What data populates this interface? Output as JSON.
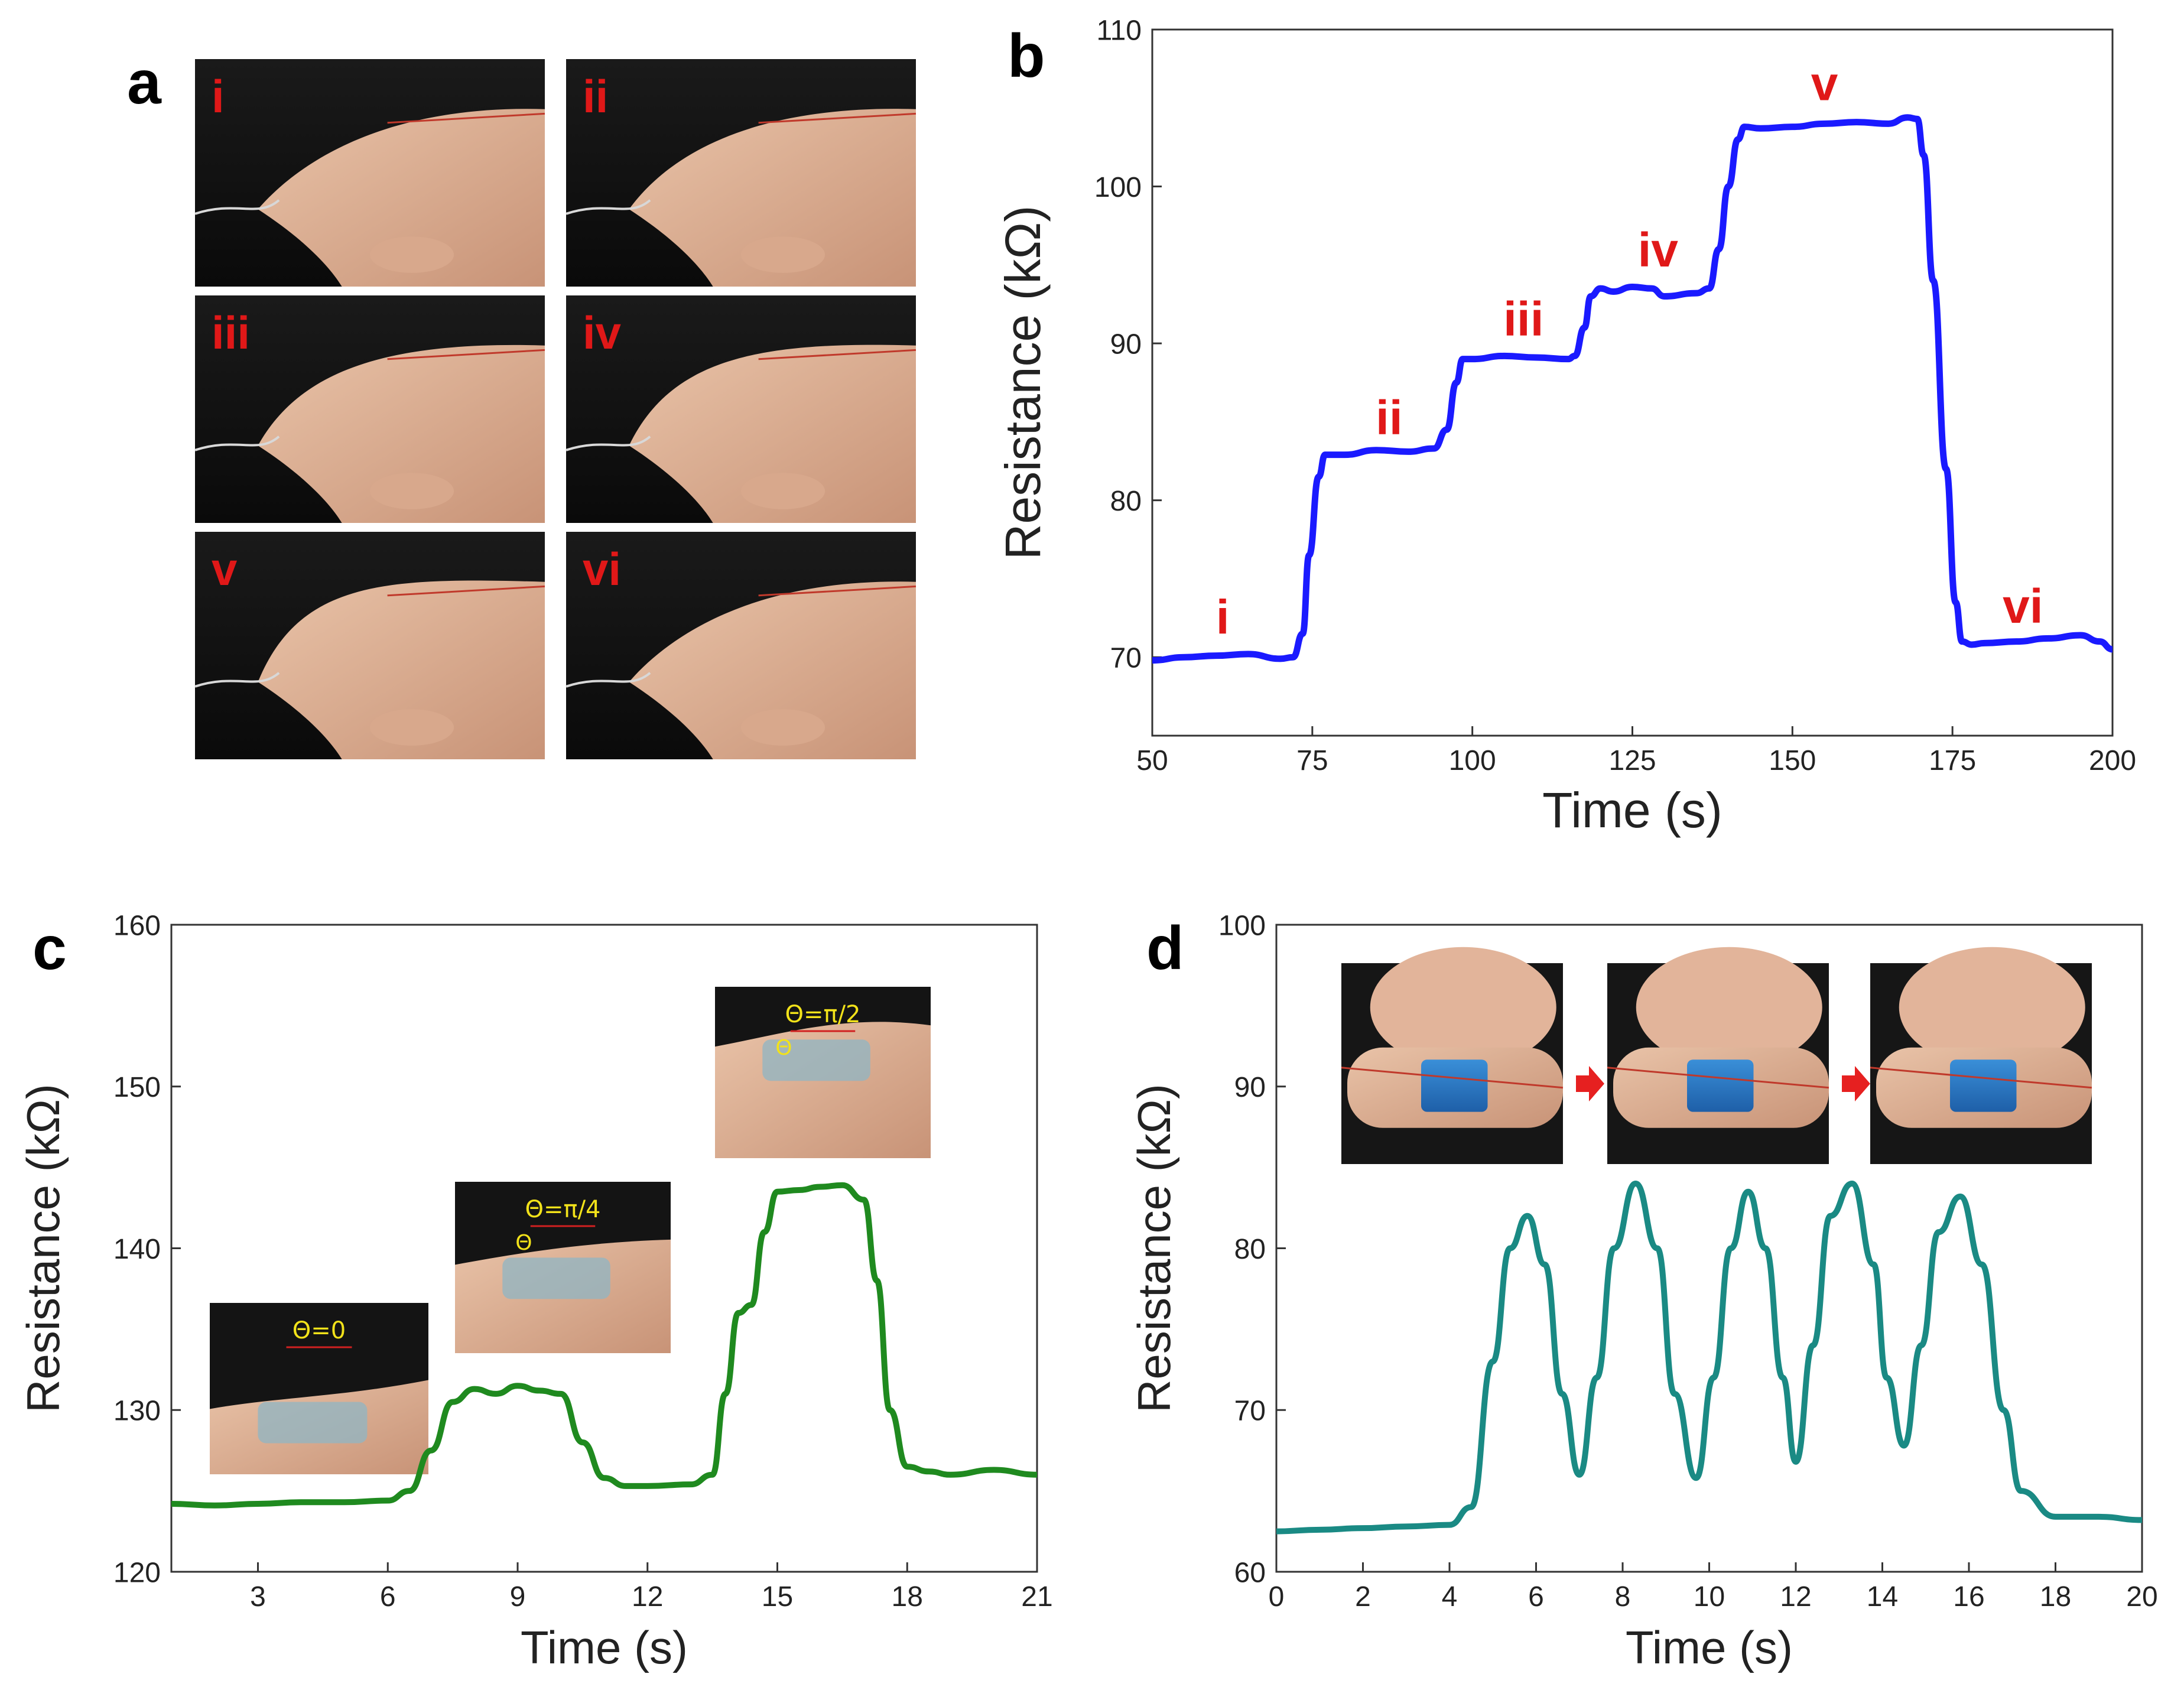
{
  "panel_labels": [
    "a",
    "b",
    "c",
    "d"
  ],
  "panel_a": {
    "photo_labels": [
      "i",
      "ii",
      "iii",
      "iv",
      "v",
      "vi"
    ]
  },
  "chart_data": [
    {
      "id": "b",
      "type": "line",
      "title": "",
      "xlabel": "Time (s)",
      "ylabel": "Resistance (kΩ)",
      "xlim": [
        50,
        200
      ],
      "ylim": [
        65,
        110
      ],
      "xticks": [
        50,
        75,
        100,
        125,
        150,
        175,
        200
      ],
      "yticks": [
        70,
        80,
        90,
        100,
        110
      ],
      "color": "#1a1aff",
      "series": [
        {
          "name": "resistance",
          "x": [
            50,
            55,
            60,
            65,
            70,
            72,
            73.5,
            74.5,
            76,
            77,
            80,
            85,
            90,
            94,
            96,
            97.5,
            98.5,
            100,
            105,
            110,
            115,
            116,
            117.5,
            118.5,
            120,
            122,
            125,
            128,
            130,
            135,
            137,
            138.5,
            140,
            141.5,
            142.5,
            145,
            150,
            155,
            160,
            165,
            168,
            169.5,
            170.5,
            172,
            174,
            175.5,
            176.5,
            178,
            180,
            185,
            190,
            195,
            198,
            200
          ],
          "values": [
            69.8,
            70.0,
            70.1,
            70.2,
            69.9,
            70.0,
            71.5,
            76.5,
            81.5,
            82.9,
            82.9,
            83.2,
            83.1,
            83.3,
            84.5,
            87.5,
            89.0,
            89.0,
            89.2,
            89.1,
            89.0,
            89.2,
            91.0,
            93.0,
            93.5,
            93.3,
            93.6,
            93.5,
            93.0,
            93.2,
            93.5,
            96.0,
            100.0,
            103.0,
            103.8,
            103.7,
            103.8,
            104.0,
            104.1,
            104.0,
            104.4,
            104.3,
            102.0,
            94.0,
            82.0,
            73.5,
            71.0,
            70.8,
            70.9,
            71.0,
            71.2,
            71.4,
            71.0,
            70.5
          ]
        }
      ],
      "annotations": [
        {
          "label": "i",
          "x": 61,
          "y": 71.5
        },
        {
          "label": "ii",
          "x": 87,
          "y": 84.2
        },
        {
          "label": "iii",
          "x": 108,
          "y": 90.5
        },
        {
          "label": "iv",
          "x": 129,
          "y": 94.9
        },
        {
          "label": "v",
          "x": 155,
          "y": 105.5
        },
        {
          "label": "vi",
          "x": 186,
          "y": 72.2
        }
      ]
    },
    {
      "id": "c",
      "type": "line",
      "title": "",
      "xlabel": "Time (s)",
      "ylabel": "Resistance (kΩ)",
      "xlim": [
        1,
        21
      ],
      "ylim": [
        120,
        160
      ],
      "xticks": [
        3,
        6,
        9,
        12,
        15,
        18,
        21
      ],
      "yticks": [
        120,
        130,
        140,
        150,
        160
      ],
      "color": "#1f8a1f",
      "series": [
        {
          "name": "resistance",
          "x": [
            1,
            2,
            3,
            4,
            5,
            6,
            6.5,
            7,
            7.5,
            8,
            8.5,
            9,
            9.5,
            10,
            10.5,
            11,
            11.5,
            12,
            13,
            13.5,
            13.8,
            14.1,
            14.4,
            14.7,
            15,
            15.5,
            16,
            16.5,
            17,
            17.3,
            17.6,
            18,
            18.5,
            19,
            20,
            21
          ],
          "values": [
            124.2,
            124.1,
            124.2,
            124.3,
            124.3,
            124.4,
            125.0,
            127.5,
            130.5,
            131.3,
            131.0,
            131.5,
            131.2,
            131.0,
            128.0,
            125.8,
            125.3,
            125.3,
            125.4,
            126.0,
            131.0,
            136.0,
            136.5,
            141.0,
            143.5,
            143.6,
            143.8,
            143.9,
            143.0,
            138.0,
            130.0,
            126.5,
            126.2,
            126.0,
            126.3,
            126.0
          ]
        }
      ],
      "insets": [
        {
          "label": "Θ=0"
        },
        {
          "label": "Θ=π/4",
          "theta": "Θ"
        },
        {
          "label": "Θ=π/2",
          "theta": "Θ"
        }
      ]
    },
    {
      "id": "d",
      "type": "line",
      "title": "",
      "xlabel": "Time (s)",
      "ylabel": "Resistance (kΩ)",
      "xlim": [
        0,
        20
      ],
      "ylim": [
        60,
        100
      ],
      "xticks": [
        0,
        2,
        4,
        6,
        8,
        10,
        12,
        14,
        16,
        18,
        20
      ],
      "yticks": [
        60,
        70,
        80,
        90,
        100
      ],
      "color": "#1a8a84",
      "series": [
        {
          "name": "resistance",
          "x": [
            0,
            1,
            2,
            3,
            4,
            4.5,
            5,
            5.4,
            5.8,
            6.2,
            6.6,
            7.0,
            7.4,
            7.8,
            8.3,
            8.8,
            9.2,
            9.7,
            10.1,
            10.5,
            10.9,
            11.3,
            11.7,
            12.0,
            12.4,
            12.8,
            13.3,
            13.8,
            14.1,
            14.5,
            14.9,
            15.3,
            15.8,
            16.3,
            16.8,
            17.2,
            18,
            19,
            20
          ],
          "values": [
            62.5,
            62.6,
            62.7,
            62.8,
            62.9,
            64.0,
            73.0,
            80.0,
            82.0,
            79.0,
            71.0,
            66.0,
            72.0,
            80.0,
            84.0,
            80.0,
            71.0,
            65.8,
            72.0,
            80.0,
            83.5,
            80.0,
            72.0,
            66.8,
            74.0,
            82.0,
            84.0,
            79.0,
            72.0,
            67.8,
            74.0,
            81.0,
            83.2,
            79.0,
            70.0,
            65.0,
            63.4,
            63.4,
            63.2
          ]
        }
      ]
    }
  ]
}
